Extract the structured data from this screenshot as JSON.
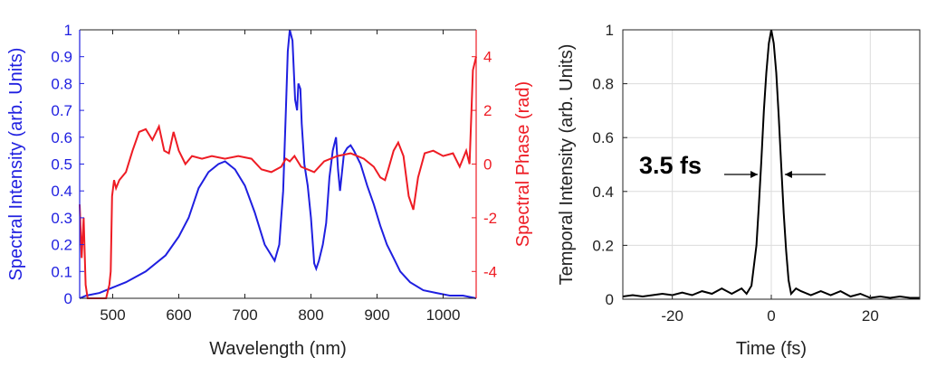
{
  "chart_data": [
    {
      "type": "line",
      "xlabel": "Wavelength (nm)",
      "ylabel": "Spectral Intensity (arb. Units)",
      "y2label": "Spectral Phase (rad)",
      "xlim": [
        450,
        1050
      ],
      "ylim": [
        0,
        1
      ],
      "y2lim": [
        -5,
        5
      ],
      "xticks": [
        "500",
        "600",
        "700",
        "800",
        "900",
        "1000"
      ],
      "yticks": [
        "0",
        "0.1",
        "0.2",
        "0.3",
        "0.4",
        "0.5",
        "0.6",
        "0.7",
        "0.8",
        "0.9",
        "1"
      ],
      "y2ticks": [
        "-4",
        "-2",
        "0",
        "2",
        "4"
      ],
      "grid": false,
      "colors": {
        "intensity": "#1f1fe0",
        "phase": "#ee1c24"
      },
      "series": [
        {
          "axis": "left",
          "color": "#1f1fe0",
          "x": [
            450,
            460,
            480,
            500,
            520,
            550,
            580,
            600,
            615,
            630,
            645,
            660,
            670,
            685,
            700,
            715,
            730,
            745,
            752,
            758,
            762,
            765,
            768,
            772,
            776,
            779,
            781,
            784,
            786,
            790,
            795,
            800,
            805,
            808,
            812,
            818,
            823,
            828,
            833,
            838,
            841,
            844,
            847,
            850,
            855,
            860,
            865,
            875,
            885,
            895,
            905,
            915,
            925,
            935,
            950,
            970,
            990,
            1010,
            1030,
            1050
          ],
          "y": [
            0,
            0.01,
            0.02,
            0.04,
            0.06,
            0.1,
            0.16,
            0.23,
            0.3,
            0.41,
            0.47,
            0.5,
            0.51,
            0.48,
            0.42,
            0.32,
            0.2,
            0.14,
            0.2,
            0.4,
            0.7,
            0.92,
            1.0,
            0.96,
            0.74,
            0.7,
            0.8,
            0.78,
            0.65,
            0.5,
            0.42,
            0.3,
            0.13,
            0.11,
            0.14,
            0.2,
            0.28,
            0.45,
            0.55,
            0.6,
            0.48,
            0.4,
            0.47,
            0.54,
            0.56,
            0.57,
            0.55,
            0.5,
            0.42,
            0.35,
            0.27,
            0.2,
            0.15,
            0.1,
            0.06,
            0.03,
            0.02,
            0.01,
            0.01,
            0.0
          ]
        },
        {
          "axis": "right",
          "color": "#ee1c24",
          "x": [
            450,
            453,
            456,
            459,
            462,
            467,
            475,
            485,
            490,
            495,
            497,
            499,
            502,
            505,
            510,
            520,
            530,
            540,
            550,
            560,
            570,
            578,
            585,
            592,
            600,
            610,
            620,
            635,
            650,
            670,
            690,
            710,
            725,
            740,
            755,
            762,
            768,
            775,
            785,
            795,
            805,
            820,
            840,
            860,
            880,
            895,
            905,
            912,
            917,
            925,
            932,
            940,
            948,
            955,
            962,
            972,
            985,
            1000,
            1015,
            1025,
            1035,
            1040,
            1045,
            1050
          ],
          "y": [
            -1.5,
            -3.5,
            -2,
            -4.5,
            -5,
            -5,
            -5,
            -5,
            -5,
            -4.5,
            -4,
            -1.2,
            -0.6,
            -0.9,
            -0.6,
            -0.3,
            0.5,
            1.2,
            1.3,
            0.9,
            1.4,
            0.5,
            0.4,
            1.2,
            0.5,
            0,
            0.3,
            0.2,
            0.3,
            0.2,
            0.3,
            0.2,
            -0.2,
            -0.3,
            -0.1,
            0.2,
            0.1,
            0.3,
            -0.1,
            -0.2,
            -0.3,
            0.1,
            0.3,
            0.4,
            0.2,
            -0.1,
            -0.5,
            -0.6,
            -0.2,
            0.5,
            0.8,
            0.3,
            -1.2,
            -1.7,
            -0.5,
            0.4,
            0.5,
            0.3,
            0.4,
            -0.1,
            0.5,
            0,
            3.5,
            4
          ]
        }
      ]
    },
    {
      "type": "line",
      "xlabel": "Time (fs)",
      "ylabel": "Temporal Intensity (arb. Units)",
      "xlim": [
        -30,
        30
      ],
      "ylim": [
        0,
        1
      ],
      "xticks": [
        "-20",
        "0",
        "20"
      ],
      "yticks": [
        "0",
        "0.2",
        "0.4",
        "0.6",
        "0.8",
        "1"
      ],
      "grid": true,
      "colors": {
        "pulse": "#000000"
      },
      "series": [
        {
          "color": "#000000",
          "x": [
            -30,
            -28,
            -26,
            -24,
            -22,
            -20,
            -18,
            -16,
            -14,
            -12,
            -10,
            -8,
            -6,
            -5,
            -4,
            -3,
            -2.5,
            -2,
            -1.5,
            -1,
            -0.5,
            0,
            0.5,
            1,
            1.5,
            2,
            2.5,
            3,
            3.5,
            4,
            5,
            6,
            8,
            10,
            12,
            14,
            16,
            18,
            20,
            22,
            24,
            26,
            28,
            30
          ],
          "y": [
            0.01,
            0.015,
            0.01,
            0.015,
            0.02,
            0.015,
            0.025,
            0.015,
            0.03,
            0.02,
            0.04,
            0.02,
            0.04,
            0.02,
            0.05,
            0.2,
            0.35,
            0.52,
            0.7,
            0.84,
            0.95,
            1.0,
            0.95,
            0.84,
            0.68,
            0.5,
            0.32,
            0.18,
            0.07,
            0.02,
            0.04,
            0.03,
            0.015,
            0.03,
            0.015,
            0.03,
            0.01,
            0.02,
            0.005,
            0.01,
            0.005,
            0.01,
            0.005,
            0.005
          ]
        }
      ],
      "annotation": {
        "text": "3.5 fs"
      }
    }
  ]
}
